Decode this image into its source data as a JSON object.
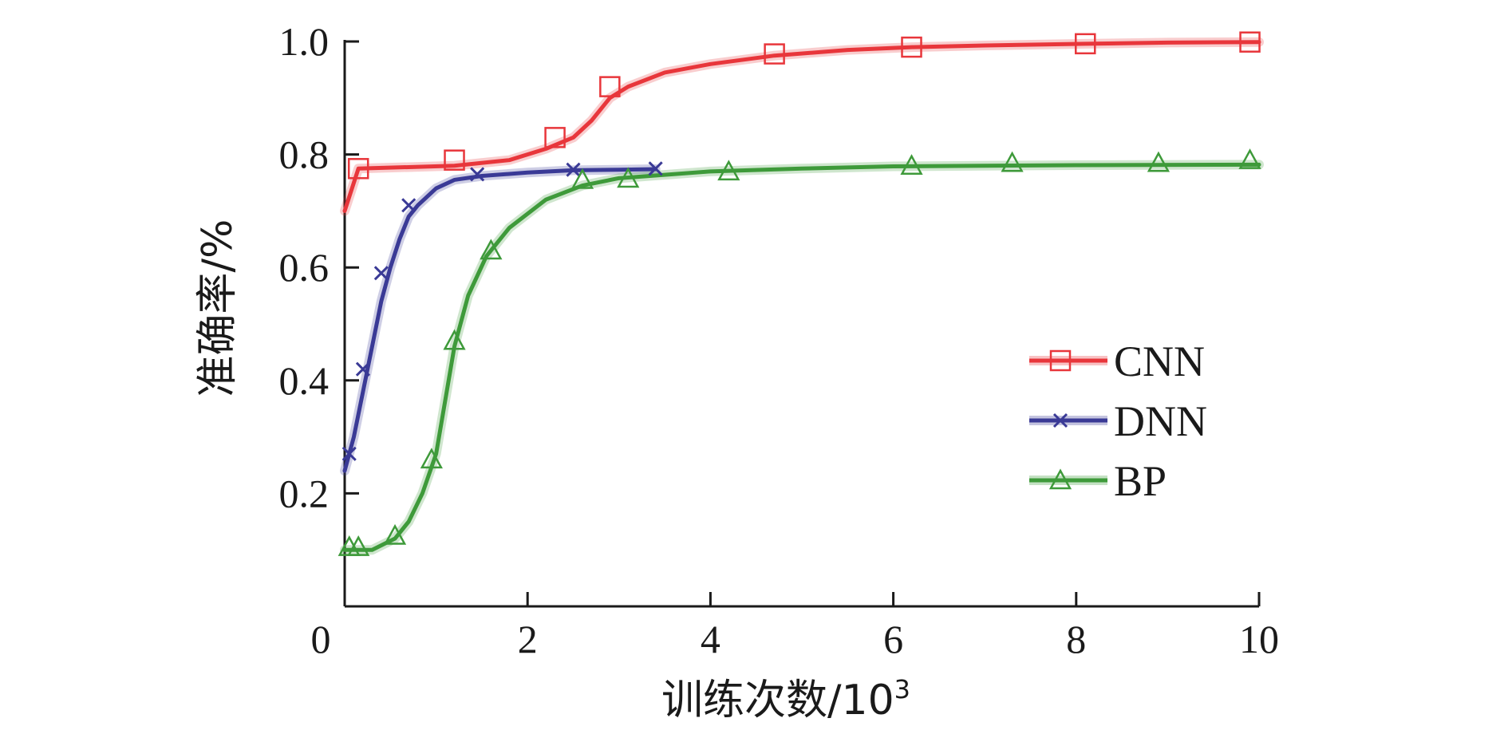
{
  "chart_data": {
    "type": "line",
    "title": "",
    "xlabel": "训练次数/10",
    "xlabel_sup": "3",
    "ylabel": "准确率/%",
    "xlim": [
      0,
      10
    ],
    "ylim": [
      0,
      1.0
    ],
    "x_ticks": [
      0,
      2,
      4,
      6,
      8,
      10
    ],
    "x_tick_labels": [
      "0",
      "2",
      "4",
      "6",
      "8",
      "10"
    ],
    "y_ticks": [
      0.2,
      0.4,
      0.6,
      0.8,
      1.0
    ],
    "y_tick_labels": [
      "0.2",
      "0.4",
      "0.6",
      "0.8",
      "1.0"
    ],
    "grid": false,
    "legend_position": "center-right",
    "series": [
      {
        "name": "CNN",
        "color": "#e8363b",
        "marker": "square",
        "x": [
          0.0,
          0.15,
          1.2,
          1.8,
          2.2,
          2.5,
          2.7,
          2.9,
          3.1,
          3.5,
          4.0,
          4.7,
          5.5,
          6.2,
          7.0,
          8.1,
          9.0,
          10.0
        ],
        "y": [
          0.7,
          0.775,
          0.78,
          0.79,
          0.81,
          0.83,
          0.86,
          0.9,
          0.92,
          0.945,
          0.96,
          0.975,
          0.985,
          0.99,
          0.993,
          0.996,
          0.998,
          0.999
        ],
        "markers_x": [
          0.15,
          1.2,
          2.3,
          2.9,
          4.7,
          6.2,
          8.1,
          9.9
        ],
        "markers_y": [
          0.775,
          0.79,
          0.83,
          0.92,
          0.978,
          0.99,
          0.996,
          0.999
        ]
      },
      {
        "name": "DNN",
        "color": "#3a3a96",
        "marker": "x",
        "x": [
          0.0,
          0.1,
          0.2,
          0.3,
          0.4,
          0.5,
          0.6,
          0.7,
          0.8,
          1.0,
          1.2,
          1.5,
          2.0,
          2.5,
          3.0,
          3.4
        ],
        "y": [
          0.24,
          0.3,
          0.38,
          0.46,
          0.54,
          0.6,
          0.65,
          0.69,
          0.71,
          0.74,
          0.755,
          0.762,
          0.768,
          0.772,
          0.773,
          0.774
        ],
        "markers_x": [
          0.05,
          0.2,
          0.4,
          0.7,
          1.45,
          2.5,
          3.4
        ],
        "markers_y": [
          0.27,
          0.42,
          0.59,
          0.71,
          0.765,
          0.773,
          0.775
        ]
      },
      {
        "name": "BP",
        "color": "#3e9a3a",
        "marker": "triangle",
        "x": [
          0.0,
          0.3,
          0.55,
          0.7,
          0.85,
          1.0,
          1.2,
          1.35,
          1.55,
          1.8,
          2.2,
          2.6,
          3.0,
          4.0,
          5.0,
          6.0,
          8.0,
          10.0
        ],
        "y": [
          0.1,
          0.1,
          0.12,
          0.15,
          0.2,
          0.27,
          0.46,
          0.55,
          0.62,
          0.67,
          0.72,
          0.745,
          0.758,
          0.77,
          0.775,
          0.779,
          0.781,
          0.782
        ],
        "markers_x": [
          0.05,
          0.15,
          0.55,
          0.95,
          1.2,
          1.6,
          2.6,
          3.1,
          4.2,
          6.2,
          7.3,
          8.9,
          9.9
        ],
        "markers_y": [
          0.105,
          0.105,
          0.125,
          0.26,
          0.47,
          0.63,
          0.755,
          0.757,
          0.77,
          0.78,
          0.785,
          0.785,
          0.79
        ]
      }
    ]
  }
}
